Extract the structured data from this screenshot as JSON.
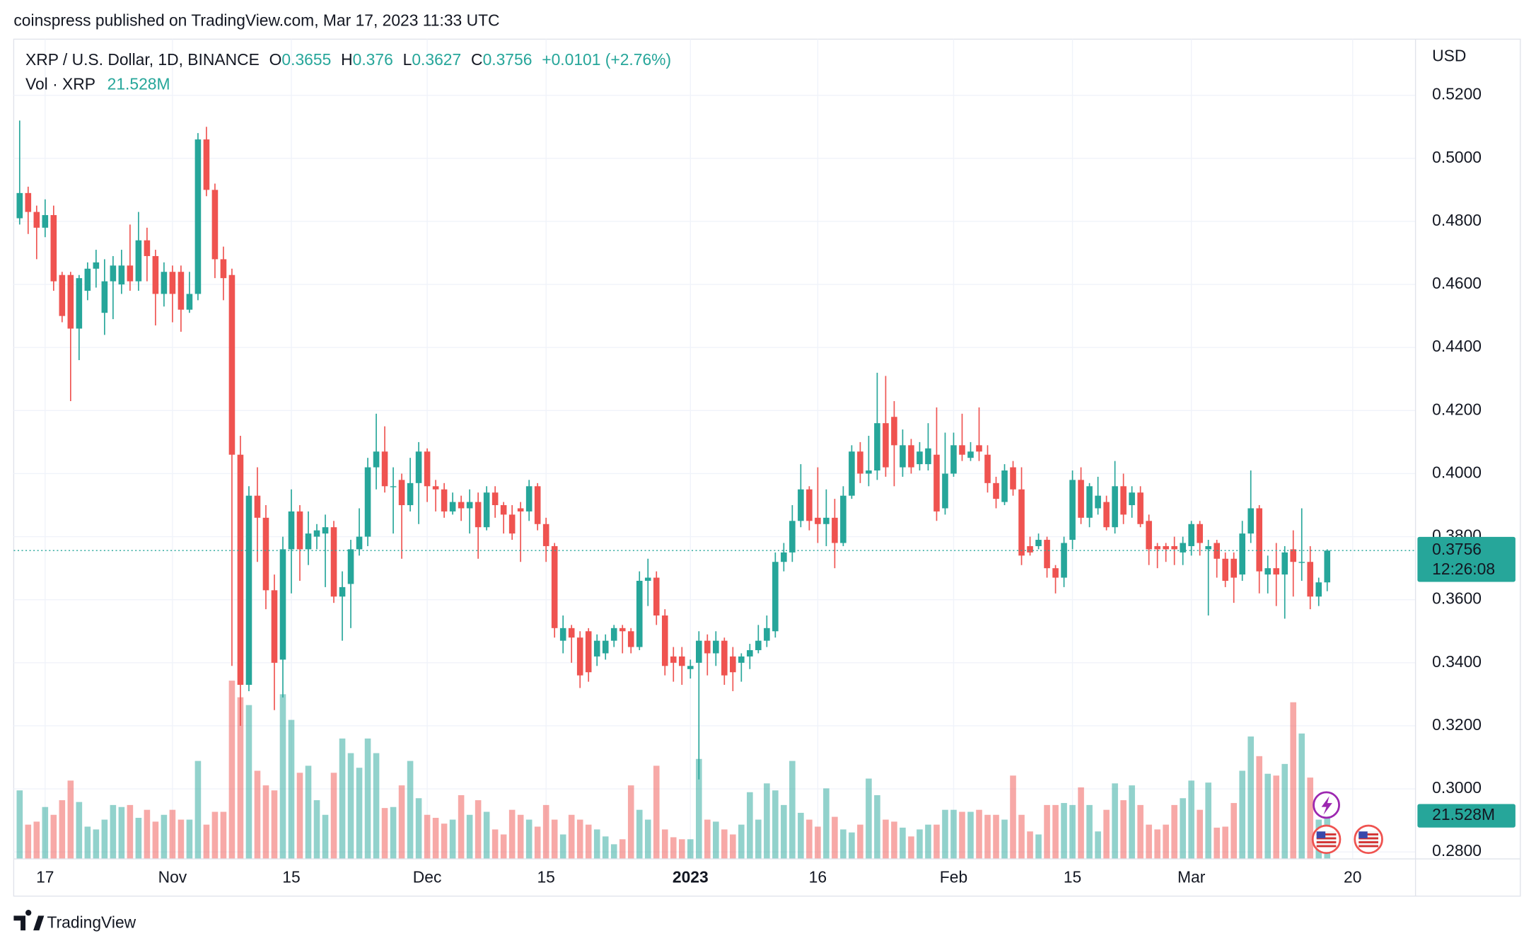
{
  "header": {
    "publisher": "coinspress published on TradingView.com, Mar 17, 2023 11:33 UTC"
  },
  "footer": {
    "brand": "TradingView"
  },
  "chart_data": {
    "type": "candlestick",
    "title": "XRP / U.S. Dollar, 1D, BINANCE",
    "ohlc_labels": [
      "O",
      "H",
      "L",
      "C"
    ],
    "change": "+0.0101 (+2.76%)",
    "countdown": "12:26:08",
    "y_axis_label": "USD",
    "up_color": "#26a69a",
    "down_color": "#ef5350",
    "grid": true,
    "open": [
      0.481,
      0.489,
      0.483,
      0.478,
      0.482,
      0.463,
      0.463,
      0.446,
      0.458,
      0.465,
      0.451,
      0.461,
      0.46,
      0.466,
      0.461,
      0.474,
      0.469,
      0.457,
      0.464,
      0.464,
      0.452,
      0.457,
      0.506,
      0.49,
      0.468,
      0.463,
      0.406,
      0.333,
      0.393,
      0.386,
      0.363,
      0.341,
      0.376,
      0.388,
      0.376,
      0.38,
      0.381,
      0.383,
      0.361,
      0.365,
      0.376,
      0.38,
      0.402,
      0.407,
      0.396,
      0.398,
      0.39,
      0.397,
      0.407,
      0.396,
      0.395,
      0.388,
      0.391,
      0.389,
      0.391,
      0.383,
      0.394,
      0.39,
      0.387,
      0.389,
      0.388,
      0.396,
      0.384,
      0.377,
      0.347,
      0.351,
      0.348,
      0.35,
      0.342,
      0.343,
      0.347,
      0.351,
      0.35,
      0.345,
      0.366,
      0.367,
      0.355,
      0.342,
      0.342,
      0.338,
      0.34,
      0.347,
      0.343,
      0.347,
      0.342,
      0.34,
      0.342,
      0.344,
      0.347,
      0.35,
      0.372,
      0.375,
      0.385,
      0.395,
      0.386,
      0.384,
      0.386,
      0.378,
      0.393,
      0.407,
      0.4,
      0.401,
      0.416,
      0.418,
      0.402,
      0.409,
      0.403,
      0.403,
      0.406,
      0.389,
      0.4,
      0.409,
      0.405,
      0.409,
      0.406,
      0.397,
      0.391,
      0.402,
      0.395,
      0.377,
      0.377,
      0.379,
      0.37,
      0.367,
      0.379,
      0.398,
      0.386,
      0.389,
      0.391,
      0.383,
      0.396,
      0.39,
      0.394,
      0.385,
      0.377,
      0.377,
      0.377,
      0.375,
      0.377,
      0.384,
      0.376,
      0.378,
      0.373,
      0.373,
      0.368,
      0.381,
      0.389,
      0.368,
      0.37,
      0.368,
      0.376,
      0.372,
      0.372,
      0.361,
      0.3655
    ],
    "high": [
      0.512,
      0.491,
      0.485,
      0.487,
      0.485,
      0.464,
      0.464,
      0.463,
      0.467,
      0.471,
      0.468,
      0.469,
      0.471,
      0.479,
      0.483,
      0.478,
      0.471,
      0.467,
      0.466,
      0.466,
      0.464,
      0.508,
      0.51,
      0.492,
      0.472,
      0.465,
      0.412,
      0.396,
      0.402,
      0.39,
      0.368,
      0.38,
      0.395,
      0.39,
      0.388,
      0.384,
      0.387,
      0.385,
      0.369,
      0.379,
      0.389,
      0.405,
      0.419,
      0.415,
      0.402,
      0.4,
      0.405,
      0.41,
      0.408,
      0.398,
      0.397,
      0.394,
      0.393,
      0.395,
      0.394,
      0.396,
      0.396,
      0.391,
      0.39,
      0.391,
      0.398,
      0.397,
      0.386,
      0.378,
      0.355,
      0.352,
      0.35,
      0.351,
      0.349,
      0.349,
      0.352,
      0.352,
      0.351,
      0.369,
      0.373,
      0.369,
      0.357,
      0.345,
      0.345,
      0.341,
      0.35,
      0.349,
      0.35,
      0.348,
      0.345,
      0.343,
      0.346,
      0.352,
      0.355,
      0.375,
      0.378,
      0.39,
      0.403,
      0.396,
      0.402,
      0.395,
      0.392,
      0.396,
      0.409,
      0.41,
      0.412,
      0.432,
      0.431,
      0.423,
      0.414,
      0.411,
      0.41,
      0.416,
      0.421,
      0.413,
      0.413,
      0.419,
      0.41,
      0.421,
      0.409,
      0.399,
      0.403,
      0.404,
      0.402,
      0.38,
      0.381,
      0.38,
      0.371,
      0.38,
      0.401,
      0.402,
      0.397,
      0.399,
      0.393,
      0.404,
      0.4,
      0.396,
      0.396,
      0.387,
      0.378,
      0.378,
      0.38,
      0.38,
      0.385,
      0.385,
      0.379,
      0.379,
      0.375,
      0.375,
      0.385,
      0.401,
      0.39,
      0.374,
      0.378,
      0.377,
      0.382,
      0.389,
      0.377,
      0.367,
      0.376
    ],
    "low": [
      0.479,
      0.476,
      0.468,
      0.475,
      0.458,
      0.448,
      0.423,
      0.436,
      0.455,
      0.459,
      0.444,
      0.449,
      0.457,
      0.458,
      0.458,
      0.461,
      0.447,
      0.453,
      0.448,
      0.445,
      0.451,
      0.455,
      0.488,
      0.462,
      0.455,
      0.339,
      0.32,
      0.331,
      0.372,
      0.357,
      0.325,
      0.329,
      0.362,
      0.366,
      0.371,
      0.376,
      0.364,
      0.359,
      0.347,
      0.351,
      0.374,
      0.377,
      0.395,
      0.394,
      0.381,
      0.373,
      0.388,
      0.384,
      0.391,
      0.388,
      0.386,
      0.387,
      0.385,
      0.381,
      0.373,
      0.382,
      0.386,
      0.381,
      0.379,
      0.372,
      0.385,
      0.382,
      0.372,
      0.348,
      0.343,
      0.34,
      0.332,
      0.334,
      0.339,
      0.341,
      0.345,
      0.343,
      0.343,
      0.344,
      0.358,
      0.352,
      0.336,
      0.334,
      0.333,
      0.335,
      0.303,
      0.336,
      0.339,
      0.333,
      0.331,
      0.334,
      0.338,
      0.343,
      0.345,
      0.348,
      0.369,
      0.372,
      0.383,
      0.382,
      0.378,
      0.377,
      0.37,
      0.377,
      0.392,
      0.397,
      0.396,
      0.398,
      0.399,
      0.396,
      0.399,
      0.4,
      0.401,
      0.401,
      0.385,
      0.387,
      0.399,
      0.404,
      0.404,
      0.404,
      0.394,
      0.389,
      0.39,
      0.393,
      0.371,
      0.374,
      0.376,
      0.367,
      0.362,
      0.364,
      0.376,
      0.384,
      0.383,
      0.387,
      0.382,
      0.381,
      0.384,
      0.386,
      0.383,
      0.371,
      0.37,
      0.372,
      0.371,
      0.371,
      0.374,
      0.374,
      0.355,
      0.367,
      0.364,
      0.359,
      0.366,
      0.378,
      0.362,
      0.362,
      0.358,
      0.354,
      0.361,
      0.366,
      0.357,
      0.358,
      0.3627
    ],
    "close": [
      0.489,
      0.483,
      0.478,
      0.482,
      0.461,
      0.45,
      0.446,
      0.462,
      0.465,
      0.467,
      0.461,
      0.466,
      0.466,
      0.461,
      0.474,
      0.469,
      0.457,
      0.464,
      0.457,
      0.452,
      0.457,
      0.506,
      0.49,
      0.468,
      0.462,
      0.406,
      0.333,
      0.393,
      0.386,
      0.363,
      0.34,
      0.376,
      0.388,
      0.376,
      0.381,
      0.382,
      0.383,
      0.361,
      0.364,
      0.376,
      0.38,
      0.402,
      0.407,
      0.396,
      0.396,
      0.39,
      0.397,
      0.407,
      0.396,
      0.395,
      0.388,
      0.391,
      0.389,
      0.391,
      0.383,
      0.394,
      0.39,
      0.387,
      0.381,
      0.388,
      0.396,
      0.384,
      0.377,
      0.351,
      0.351,
      0.348,
      0.336,
      0.337,
      0.347,
      0.347,
      0.351,
      0.35,
      0.345,
      0.366,
      0.367,
      0.355,
      0.339,
      0.34,
      0.339,
      0.339,
      0.347,
      0.343,
      0.347,
      0.336,
      0.337,
      0.342,
      0.344,
      0.347,
      0.351,
      0.372,
      0.375,
      0.385,
      0.395,
      0.385,
      0.384,
      0.386,
      0.378,
      0.393,
      0.407,
      0.4,
      0.401,
      0.416,
      0.402,
      0.409,
      0.409,
      0.402,
      0.407,
      0.408,
      0.388,
      0.4,
      0.409,
      0.406,
      0.407,
      0.407,
      0.397,
      0.392,
      0.401,
      0.395,
      0.374,
      0.375,
      0.379,
      0.37,
      0.367,
      0.378,
      0.398,
      0.386,
      0.396,
      0.393,
      0.383,
      0.396,
      0.387,
      0.394,
      0.384,
      0.376,
      0.376,
      0.376,
      0.376,
      0.378,
      0.384,
      0.378,
      0.377,
      0.373,
      0.366,
      0.367,
      0.381,
      0.389,
      0.369,
      0.37,
      0.368,
      0.375,
      0.372,
      0.372,
      0.361,
      0.3655,
      0.3756
    ],
    "volume": {
      "name": "Vol · XRP",
      "last_label": "21.528M",
      "ylim": [
        0,
        100
      ],
      "values": [
        34.2,
        17.1,
        18.6,
        25.9,
        22.0,
        29.3,
        39.1,
        28.4,
        16.1,
        14.7,
        19.6,
        26.9,
        25.9,
        26.9,
        20.5,
        24.5,
        18.6,
        22.0,
        24.5,
        19.6,
        19.6,
        48.9,
        17.1,
        23.5,
        23.5,
        89.0,
        80.7,
        76.8,
        44.0,
        36.7,
        34.2,
        82.2,
        69.4,
        43.0,
        46.5,
        29.3,
        22.0,
        43.0,
        60.1,
        52.8,
        45.5,
        60.1,
        52.8,
        25.4,
        25.9,
        36.7,
        48.9,
        30.3,
        22.0,
        20.5,
        17.6,
        19.6,
        31.8,
        22.0,
        29.3,
        23.5,
        14.7,
        12.2,
        24.5,
        22.0,
        19.6,
        16.1,
        26.9,
        19.6,
        12.2,
        22.0,
        19.6,
        17.1,
        14.7,
        11.2,
        7.3,
        9.8,
        36.7,
        24.5,
        19.6,
        46.5,
        14.7,
        10.8,
        9.8,
        9.8,
        49.9,
        19.6,
        18.6,
        14.7,
        12.2,
        17.1,
        33.3,
        19.6,
        37.7,
        34.2,
        26.9,
        48.9,
        23.0,
        19.6,
        16.1,
        35.2,
        21.0,
        14.7,
        13.2,
        17.1,
        40.1,
        31.8,
        19.6,
        18.6,
        15.6,
        11.2,
        14.7,
        17.1,
        17.1,
        24.5,
        24.5,
        23.5,
        23.5,
        24.5,
        22.0,
        22.0,
        19.6,
        41.6,
        22.0,
        13.7,
        12.2,
        26.9,
        26.9,
        27.9,
        26.9,
        35.7,
        26.9,
        13.7,
        24.5,
        37.7,
        29.3,
        36.7,
        26.9,
        17.1,
        14.7,
        17.1,
        26.9,
        30.3,
        39.1,
        24.5,
        38.1,
        15.6,
        16.1,
        27.9,
        44.0,
        61.1,
        51.3,
        42.5,
        41.6,
        47.4,
        78.2,
        62.6,
        40.6,
        19.6,
        21.528
      ]
    },
    "xlim": [
      -0.7,
      164.4
    ],
    "xticks": [
      {
        "value": 3,
        "label": "17"
      },
      {
        "value": 18,
        "label": "Nov"
      },
      {
        "value": 32,
        "label": "15"
      },
      {
        "value": 48,
        "label": "Dec"
      },
      {
        "value": 62,
        "label": "15"
      },
      {
        "value": 79,
        "label": "2023"
      },
      {
        "value": 94,
        "label": "16"
      },
      {
        "value": 110,
        "label": "Feb"
      },
      {
        "value": 124,
        "label": "15"
      },
      {
        "value": 138,
        "label": "Mar"
      },
      {
        "value": 157,
        "label": "20"
      }
    ],
    "ylim": [
      0.2778,
      0.5378
    ],
    "yticks": [
      {
        "value": 0.28,
        "label": "0.2800"
      },
      {
        "value": 0.3,
        "label": "0.3000"
      },
      {
        "value": 0.32,
        "label": "0.3200"
      },
      {
        "value": 0.34,
        "label": "0.3400"
      },
      {
        "value": 0.36,
        "label": "0.3600"
      },
      {
        "value": 0.38,
        "label": "0.3800"
      },
      {
        "value": 0.4,
        "label": "0.4000"
      },
      {
        "value": 0.42,
        "label": "0.4200"
      },
      {
        "value": 0.44,
        "label": "0.4400"
      },
      {
        "value": 0.46,
        "label": "0.4600"
      },
      {
        "value": 0.48,
        "label": "0.4800"
      },
      {
        "value": 0.5,
        "label": "0.5000"
      },
      {
        "value": 0.52,
        "label": "0.5200"
      }
    ]
  }
}
